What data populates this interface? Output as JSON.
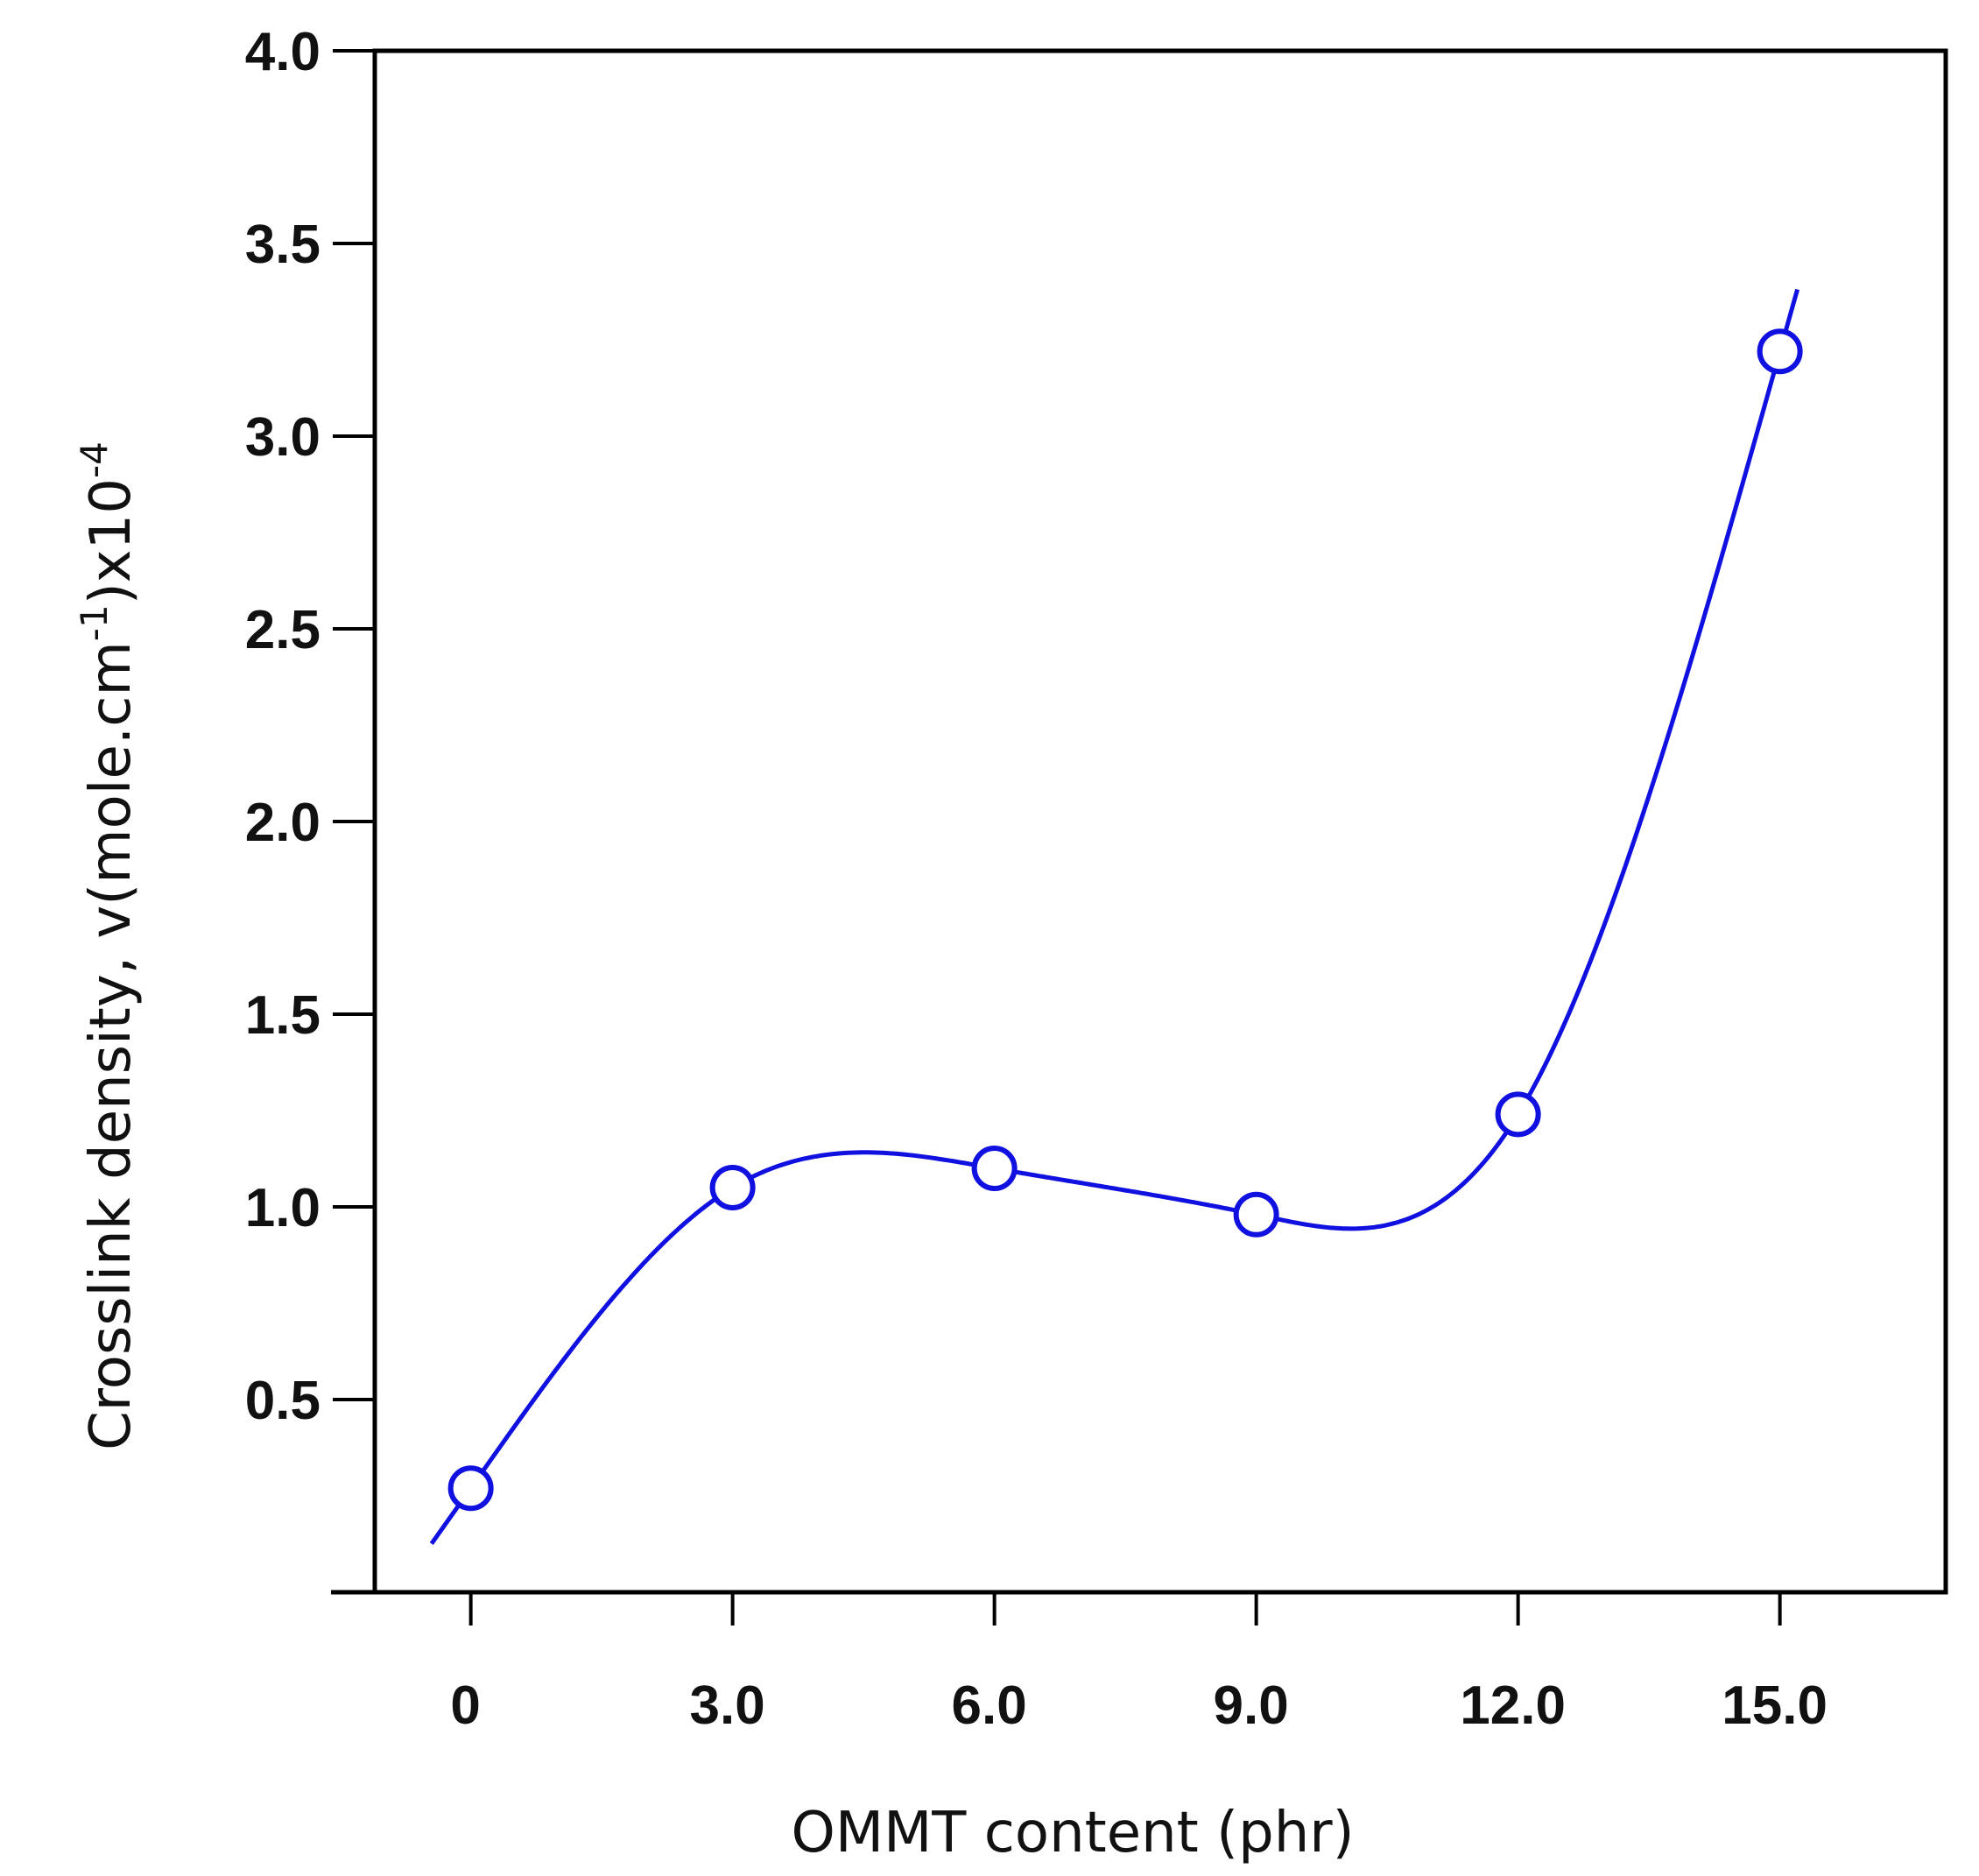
{
  "chart_data": {
    "type": "line",
    "title": "",
    "xlabel": "OMMT content (phr)",
    "ylabel": {
      "prefix": "Crosslink density, ",
      "symbol": "v",
      "unit_open": "(mole.cm",
      "unit_exp": "-1",
      "unit_close": ")x10",
      "scale_exp": "-4"
    },
    "x": [
      0,
      3,
      6,
      9,
      12,
      15
    ],
    "x_tick_labels": [
      "0",
      "3.0",
      "6.0",
      "9.0",
      "12.0",
      "15.0"
    ],
    "y_ticks": [
      0.5,
      1.0,
      1.5,
      2.0,
      2.5,
      3.0,
      3.5,
      4.0
    ],
    "y_tick_labels": [
      "0.5",
      "1.0",
      "1.5",
      "2.0",
      "2.5",
      "3.0",
      "3.5",
      "4.0"
    ],
    "xlim": [
      -1.1,
      16.9
    ],
    "ylim": [
      0.0,
      4.0
    ],
    "series": [
      {
        "name": "Crosslink density",
        "values": [
          0.27,
          1.05,
          1.1,
          0.98,
          1.24,
          3.22
        ],
        "marker": "open-circle",
        "smooth": true,
        "extend_x": [
          -0.45,
          15.2
        ],
        "color": "#1010e0"
      }
    ],
    "grid": false,
    "legend": "none"
  }
}
